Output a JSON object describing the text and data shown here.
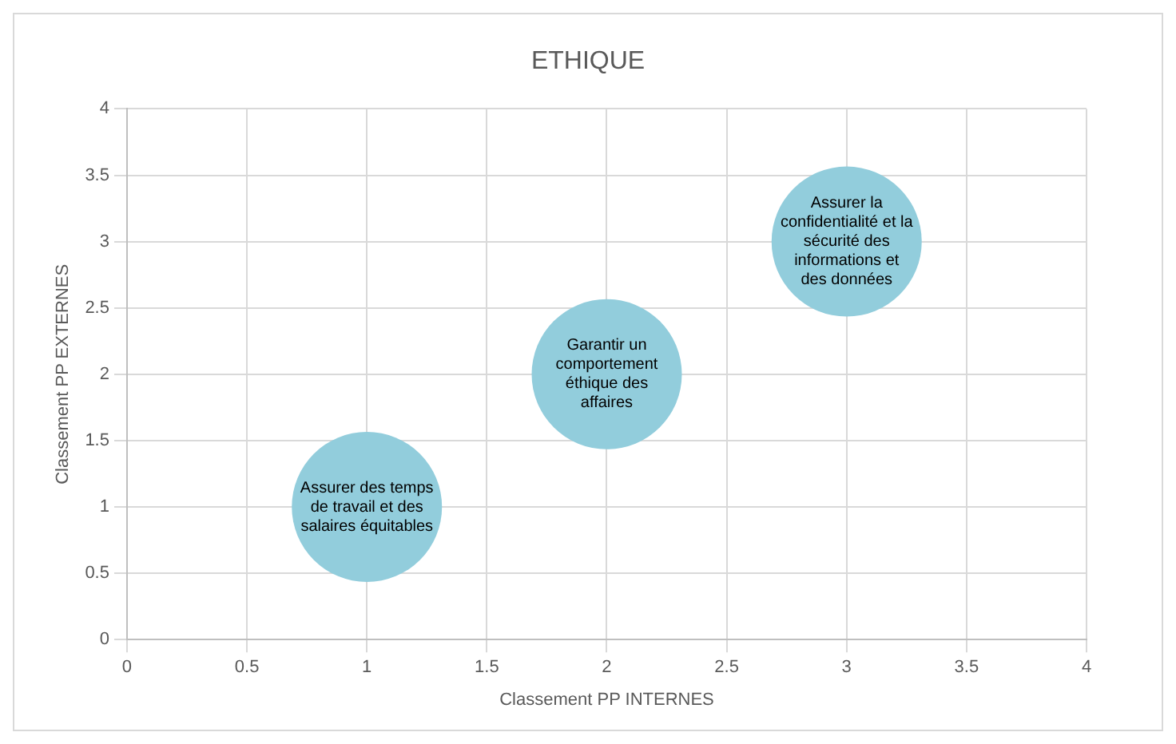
{
  "chart_data": {
    "type": "bubble",
    "title": "ETHIQUE",
    "xlabel": "Classement PP INTERNES",
    "ylabel": "Classement PP EXTERNES",
    "x": [
      1,
      2,
      3
    ],
    "values": [
      1,
      2,
      3
    ],
    "sizes": [
      1,
      1,
      1
    ],
    "color": "#92cddc",
    "xlim": [
      0,
      4
    ],
    "xticks": [
      0,
      0.5,
      1,
      1.5,
      2,
      2.5,
      3,
      3.5,
      4
    ],
    "ylim": [
      0,
      4
    ],
    "yticks": [
      0,
      0.5,
      1,
      1.5,
      2,
      2.5,
      3,
      3.5,
      4
    ],
    "grid": true,
    "legend": false,
    "annotations": [
      {
        "text": "Assurer des temps de travail et des salaires équitables",
        "x": 1,
        "y": 1
      },
      {
        "text": "Garantir un comportement éthique des affaires",
        "x": 2,
        "y": 2
      },
      {
        "text": "Assurer la confidentialité et la sécurité des informations et des données",
        "x": 3,
        "y": 3
      }
    ]
  }
}
